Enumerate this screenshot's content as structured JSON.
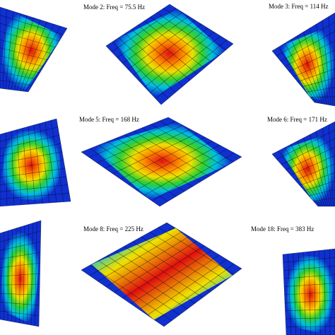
{
  "panels": [
    {
      "label": "Mode 2: Freq = 75.5 Hz"
    },
    {
      "label": "Mode 3: Freq = 114 Hz"
    },
    {
      "label": "Mode 5: Freq = 168 Hz"
    },
    {
      "label": "Mode 6: Freq = 171 Hz"
    },
    {
      "label": "Mode 8: Freq = 225 Hz"
    },
    {
      "label": "Mode 18: Freq = 383 Hz"
    }
  ]
}
